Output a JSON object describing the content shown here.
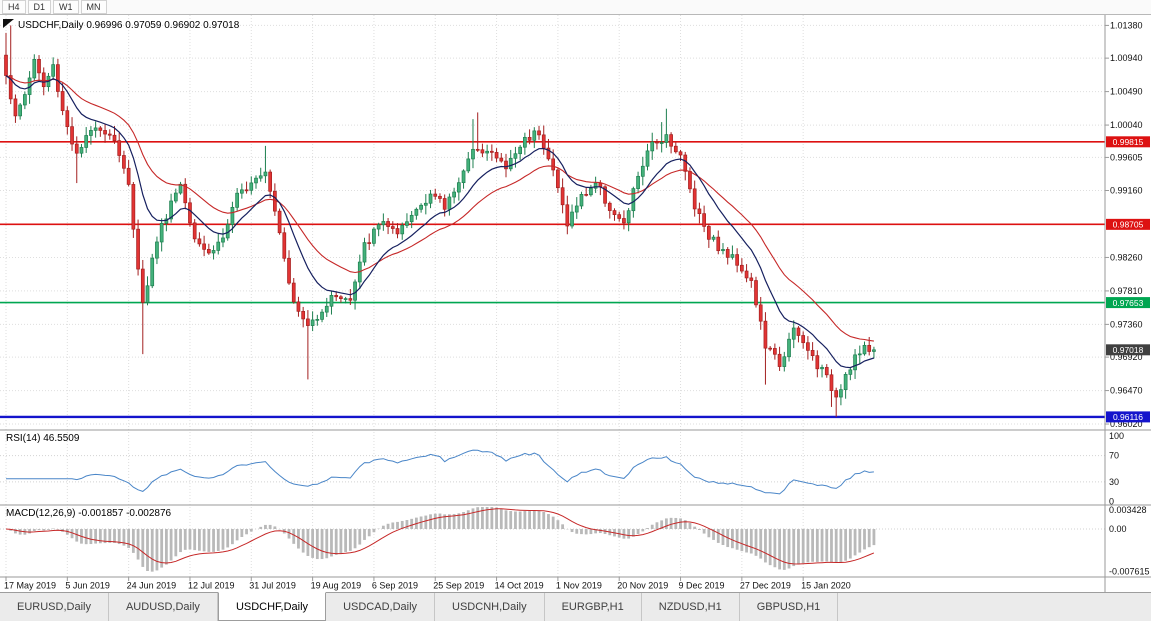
{
  "toolbar": {
    "buttons": [
      "H4",
      "D1",
      "W1",
      "MN"
    ]
  },
  "chart": {
    "symbol": "USDCHF",
    "period": "Daily",
    "open": "0.96996",
    "high": "0.97059",
    "low": "0.96902",
    "close": "0.97018",
    "header_text": "USDCHF,Daily 0.96996 0.97059 0.96902 0.97018"
  },
  "rsi_panel": {
    "label": "RSI(14) 46.5509",
    "tick_labels": [
      "100",
      "70",
      "30",
      "0"
    ],
    "tick_values": [
      100,
      70,
      30,
      0
    ],
    "line_color": "#4a86c8"
  },
  "macd_panel": {
    "label": "MACD(12,26,9) -0.001857 -0.002876",
    "tick_labels": [
      "0.003428",
      "0.00",
      "-0.007615"
    ],
    "tick_values": [
      0.003428,
      0,
      -0.007615
    ],
    "hist_color": "#b9b9b9",
    "signal_color": "#c62828"
  },
  "tabs": {
    "items": [
      "EURUSD,Daily",
      "AUDUSD,Daily",
      "USDCHF,Daily",
      "USDCAD,Daily",
      "USDCNH,Daily",
      "EURGBP,H1",
      "NZDUSD,H1",
      "GBPUSD,H1"
    ],
    "active_index": 2
  },
  "chart_data": {
    "type": "candlestick",
    "title": "USDCHF Daily",
    "bars": 185,
    "last_ohlc": {
      "open": 0.96996,
      "high": 0.97059,
      "low": 0.96902,
      "close": 0.97018
    },
    "price_ticks": [
      1.0138,
      1.0094,
      1.0049,
      1.0004,
      0.99605,
      0.9916,
      0.9826,
      0.9781,
      0.9736,
      0.9692,
      0.9647,
      0.9602
    ],
    "price_tick_labels": [
      "1.01380",
      "1.00940",
      "1.00490",
      "1.00040",
      "0.99605",
      "0.99160",
      "0.98260",
      "0.97810",
      "0.97360",
      "0.96920",
      "0.96470",
      "0.96020"
    ],
    "date_labels": [
      "17 May 2019",
      "5 Jun 2019",
      "24 Jun 2019",
      "12 Jul 2019",
      "31 Jul 2019",
      "19 Aug 2019",
      "6 Sep 2019",
      "25 Sep 2019",
      "14 Oct 2019",
      "1 Nov 2019",
      "20 Nov 2019",
      "9 Dec 2019",
      "27 Dec 2019",
      "15 Jan 2020"
    ],
    "levels": [
      {
        "value": 0.99815,
        "label": "0.99815",
        "color": "#dd1111",
        "width": 1.6,
        "name": "resistance-line-1"
      },
      {
        "value": 0.98705,
        "label": "0.98705",
        "color": "#dd1111",
        "width": 1.6,
        "name": "resistance-line-2"
      },
      {
        "value": 0.97653,
        "label": "0.97653",
        "color": "#00a651",
        "width": 1.6,
        "name": "support-line-green"
      },
      {
        "value": 0.96116,
        "label": "0.96116",
        "color": "#1414cc",
        "width": 2.4,
        "name": "support-line-blue"
      }
    ],
    "current_price": {
      "value": 0.97018,
      "label": "0.97018",
      "color": "#404040"
    },
    "colors": {
      "up": "#44b17b",
      "up_border": "#1d7f4f",
      "down": "#e23434",
      "down_border": "#a32020",
      "ma_fast": "#16205f",
      "ma_slow": "#c62828",
      "grid": "#dedede"
    },
    "ma_periods": {
      "fast": 12,
      "slow": 26
    },
    "rsi": {
      "period": 14,
      "current": 46.5509
    },
    "macd": {
      "fast": 12,
      "slow": 26,
      "signal": 9,
      "macd_value": -0.001857,
      "signal_value": -0.002876
    },
    "close_anchors": [
      [
        0,
        1.0075
      ],
      [
        2,
        1.0012
      ],
      [
        4,
        1.0046
      ],
      [
        6,
        1.0092
      ],
      [
        8,
        1.0055
      ],
      [
        10,
        1.0083
      ],
      [
        12,
        1.0024
      ],
      [
        15,
        0.9962
      ],
      [
        19,
        1.0006
      ],
      [
        23,
        0.9986
      ],
      [
        26,
        0.9921
      ],
      [
        29,
        0.9763
      ],
      [
        32,
        0.9851
      ],
      [
        35,
        0.9901
      ],
      [
        37,
        0.9926
      ],
      [
        40,
        0.9856
      ],
      [
        43,
        0.9831
      ],
      [
        46,
        0.9853
      ],
      [
        49,
        0.9906
      ],
      [
        52,
        0.9931
      ],
      [
        55,
        0.9946
      ],
      [
        58,
        0.9863
      ],
      [
        61,
        0.9763
      ],
      [
        64,
        0.9733
      ],
      [
        67,
        0.9757
      ],
      [
        70,
        0.9777
      ],
      [
        73,
        0.9767
      ],
      [
        76,
        0.9841
      ],
      [
        80,
        0.9877
      ],
      [
        83,
        0.9853
      ],
      [
        87,
        0.9891
      ],
      [
        90,
        0.9913
      ],
      [
        93,
        0.9893
      ],
      [
        96,
        0.9931
      ],
      [
        100,
        0.9977
      ],
      [
        103,
        0.9965
      ],
      [
        106,
        0.9947
      ],
      [
        110,
        0.9985
      ],
      [
        113,
        0.9997
      ],
      [
        116,
        0.9941
      ],
      [
        119,
        0.9873
      ],
      [
        122,
        0.9907
      ],
      [
        125,
        0.9927
      ],
      [
        128,
        0.9893
      ],
      [
        131,
        0.9867
      ],
      [
        134,
        0.9937
      ],
      [
        137,
        0.9977
      ],
      [
        140,
        0.9991
      ],
      [
        143,
        0.9961
      ],
      [
        146,
        0.9897
      ],
      [
        149,
        0.9857
      ],
      [
        152,
        0.9833
      ],
      [
        155,
        0.9821
      ],
      [
        158,
        0.9793
      ],
      [
        161,
        0.9707
      ],
      [
        164,
        0.9683
      ],
      [
        167,
        0.9727
      ],
      [
        170,
        0.9701
      ],
      [
        173,
        0.9673
      ],
      [
        176,
        0.9641
      ],
      [
        178,
        0.9669
      ],
      [
        180,
        0.9693
      ],
      [
        182,
        0.9701
      ],
      [
        184,
        0.97018
      ]
    ],
    "wick_spikes": [
      {
        "i": 0,
        "high": 1.0128
      },
      {
        "i": 1,
        "high": 1.0138
      },
      {
        "i": 15,
        "low": 0.9926
      },
      {
        "i": 29,
        "low": 0.9696
      },
      {
        "i": 55,
        "high": 0.9976
      },
      {
        "i": 64,
        "low": 0.9662
      },
      {
        "i": 99,
        "high": 1.0012
      },
      {
        "i": 100,
        "high": 1.0021
      },
      {
        "i": 113,
        "high": 1.0003
      },
      {
        "i": 139,
        "high": 1.0008
      },
      {
        "i": 140,
        "high": 1.0026
      },
      {
        "i": 161,
        "low": 0.9655
      },
      {
        "i": 175,
        "low": 0.9625
      },
      {
        "i": 176,
        "low": 0.96116
      }
    ]
  }
}
